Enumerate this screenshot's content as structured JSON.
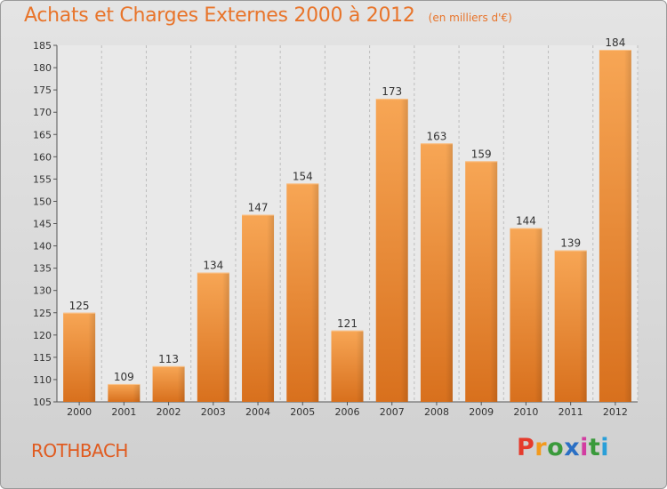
{
  "header": {
    "title": "Achats et Charges Externes 2000 à 2012",
    "unit_note": "(en milliers d'€)"
  },
  "footer": {
    "place": "ROTHBACH",
    "brand": "Proxiti"
  },
  "colors": {
    "title": "#e8742a",
    "bar_light": "#f6a352",
    "bar_dark": "#d9731f",
    "place": "#e05a1e"
  },
  "chart_data": {
    "type": "bar",
    "title": "Achats et Charges Externes 2000 à 2012",
    "subtitle": "(en milliers d'€)",
    "categories": [
      "2000",
      "2001",
      "2002",
      "2003",
      "2004",
      "2005",
      "2006",
      "2007",
      "2008",
      "2009",
      "2010",
      "2011",
      "2012"
    ],
    "values": [
      125,
      109,
      113,
      134,
      147,
      154,
      121,
      173,
      163,
      159,
      144,
      139,
      184
    ],
    "ylim": [
      105,
      185
    ],
    "yticks": [
      105,
      110,
      115,
      120,
      125,
      130,
      135,
      140,
      145,
      150,
      155,
      160,
      165,
      170,
      175,
      180,
      185
    ],
    "data_labels": true,
    "grid": "dashed vertical",
    "xlabel": "",
    "ylabel": ""
  }
}
